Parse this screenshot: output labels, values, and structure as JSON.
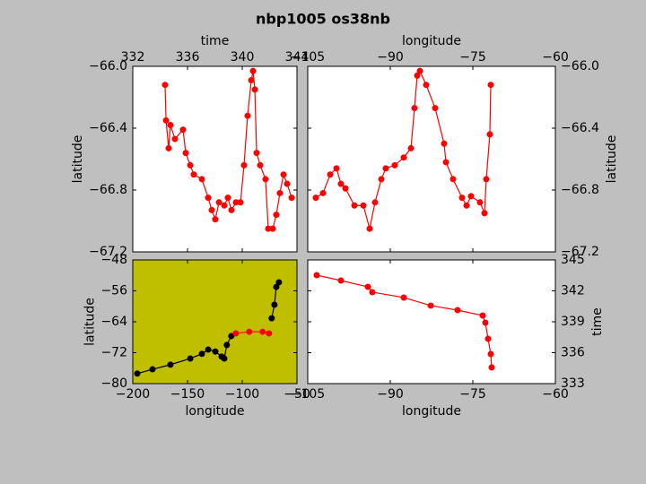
{
  "title": "nbp1005 os38nb",
  "chart_data": [
    {
      "type": "line",
      "x_label": "time",
      "y_label": "latitude",
      "xaxis_side": "top",
      "yaxis_side": "left",
      "background": "#ffffff",
      "xlim": [
        332,
        344
      ],
      "xticks": [
        332,
        336,
        340,
        344
      ],
      "ylim": [
        -67.2,
        -66.0
      ],
      "yticks": [
        {
          "value": -66.0,
          "label": "−66.0"
        },
        {
          "value": -66.4,
          "label": "−66.4"
        },
        {
          "value": -66.8,
          "label": "−66.8"
        },
        {
          "value": -67.2,
          "label": "−67.2"
        }
      ],
      "series": [
        {
          "color": "#ff0000",
          "x": [
            334.36,
            334.43,
            334.62,
            334.75,
            335.08,
            335.67,
            335.87,
            336.2,
            336.46,
            337.05,
            337.51,
            337.77,
            338.03,
            338.3,
            338.69,
            338.95,
            339.21,
            339.54,
            339.87,
            340.13,
            340.39,
            340.66,
            340.79,
            340.92,
            341.05,
            341.31,
            341.7,
            341.9,
            342.23,
            342.49,
            342.75,
            343.02,
            343.28,
            343.61
          ],
          "y": [
            -66.12,
            -66.35,
            -66.53,
            -66.38,
            -66.47,
            -66.41,
            -66.56,
            -66.64,
            -66.7,
            -66.73,
            -66.85,
            -66.93,
            -66.99,
            -66.88,
            -66.9,
            -66.85,
            -66.93,
            -66.88,
            -66.88,
            -66.64,
            -66.32,
            -66.09,
            -66.03,
            -66.15,
            -66.56,
            -66.64,
            -66.73,
            -67.05,
            -67.05,
            -66.96,
            -66.82,
            -66.7,
            -66.76,
            -66.85
          ]
        }
      ]
    },
    {
      "type": "line",
      "x_label": "longitude",
      "y_label": "latitude",
      "xaxis_side": "top",
      "yaxis_side": "right",
      "background": "#ffffff",
      "xlim": [
        -105,
        -60
      ],
      "xticks": [
        {
          "value": -105,
          "label": "−105"
        },
        {
          "value": -90,
          "label": "−90"
        },
        {
          "value": -75,
          "label": "−75"
        },
        {
          "value": -60,
          "label": "−60"
        }
      ],
      "ylim": [
        -67.2,
        -66.0
      ],
      "yticks": [
        {
          "value": -66.0,
          "label": "−66.0"
        },
        {
          "value": -66.4,
          "label": "−66.4"
        },
        {
          "value": -66.8,
          "label": "−66.8"
        },
        {
          "value": -67.2,
          "label": "−67.2"
        }
      ],
      "series": [
        {
          "color": "#ff0000",
          "x": [
            -103.53,
            -102.23,
            -100.92,
            -99.78,
            -98.97,
            -98.15,
            -96.52,
            -94.89,
            -93.75,
            -92.77,
            -91.63,
            -90.82,
            -89.19,
            -87.55,
            -86.25,
            -85.6,
            -85.11,
            -84.62,
            -83.48,
            -81.85,
            -80.22,
            -79.89,
            -78.59,
            -76.96,
            -76.14,
            -75.33,
            -73.7,
            -72.88,
            -72.56,
            -71.91,
            -71.74
          ],
          "y": [
            -66.85,
            -66.82,
            -66.7,
            -66.66,
            -66.76,
            -66.79,
            -66.9,
            -66.9,
            -67.05,
            -66.88,
            -66.73,
            -66.66,
            -66.64,
            -66.59,
            -66.53,
            -66.27,
            -66.06,
            -66.03,
            -66.12,
            -66.27,
            -66.5,
            -66.62,
            -66.73,
            -66.85,
            -66.9,
            -66.84,
            -66.88,
            -66.95,
            -66.73,
            -66.44,
            -66.12
          ]
        }
      ]
    },
    {
      "type": "line",
      "x_label": "longitude",
      "y_label": "latitude",
      "xaxis_side": "bottom",
      "yaxis_side": "left",
      "background": "#bfbf00",
      "xlim": [
        -200,
        -50
      ],
      "xticks": [
        {
          "value": -200,
          "label": "−200"
        },
        {
          "value": -150,
          "label": "−150"
        },
        {
          "value": -100,
          "label": "−100"
        },
        {
          "value": -50,
          "label": "−50"
        }
      ],
      "ylim": [
        -80,
        -48
      ],
      "yticks": [
        {
          "value": -80,
          "label": "−80"
        },
        {
          "value": -72,
          "label": "−72"
        },
        {
          "value": -64,
          "label": "−64"
        },
        {
          "value": -56,
          "label": "−56"
        },
        {
          "value": -48,
          "label": "−48"
        }
      ],
      "series": [
        {
          "color": "#000000",
          "x": [
            -195.9,
            -182.0,
            -165.6,
            -147.5,
            -136.9,
            -131.1,
            -124.6,
            -118.9,
            -116.4,
            -114.1,
            -110.0,
            null,
            -73.1,
            -70.6,
            -68.9,
            -66.5
          ],
          "y": [
            -77.4,
            -76.3,
            -75.1,
            -73.5,
            -72.3,
            -71.2,
            -71.7,
            -73.0,
            -73.5,
            -70.0,
            -67.7,
            null,
            -63.1,
            -59.6,
            -55.0,
            -53.8
          ]
        },
        {
          "color": "#ff0000",
          "x": [
            -105.9,
            -93.6,
            -81.4,
            -75.6
          ],
          "y": [
            -67.0,
            -66.6,
            -66.6,
            -67.0
          ]
        }
      ]
    },
    {
      "type": "line",
      "x_label": "longitude",
      "y_label": "time",
      "xaxis_side": "bottom",
      "yaxis_side": "right",
      "background": "#ffffff",
      "xlim": [
        -105,
        -60
      ],
      "xticks": [
        {
          "value": -105,
          "label": "−105"
        },
        {
          "value": -90,
          "label": "−90"
        },
        {
          "value": -75,
          "label": "−75"
        },
        {
          "value": -60,
          "label": "−60"
        }
      ],
      "ylim": [
        333,
        345
      ],
      "yticks": [
        333,
        336,
        339,
        342,
        345
      ],
      "series": [
        {
          "color": "#ff0000",
          "x": [
            -103.37,
            -98.97,
            -94.08,
            -93.27,
            -87.55,
            -82.66,
            -77.77,
            -73.21,
            -72.72,
            -72.23,
            -71.74,
            -71.58
          ],
          "y": [
            343.52,
            343.0,
            342.39,
            341.87,
            341.35,
            340.57,
            340.13,
            339.61,
            338.91,
            337.35,
            335.87,
            334.57
          ]
        }
      ]
    }
  ]
}
